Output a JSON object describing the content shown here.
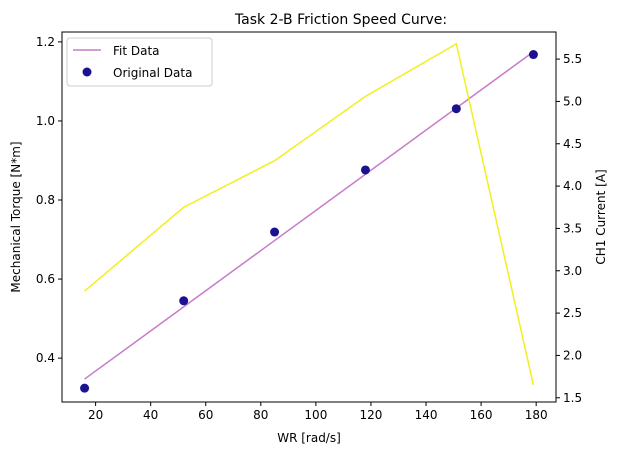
{
  "chart_data": {
    "type": "line",
    "title": "Task 2-B Friction Speed Curve:",
    "xlabel": "WR [rad/s]",
    "ylabel": "Mechanical Torque [N*m]",
    "y2label": "CH1 Current [A]",
    "xlim": [
      7.8,
      187.2
    ],
    "ylim": [
      0.289,
      1.225
    ],
    "y2lim": [
      1.45,
      5.82
    ],
    "x_ticks": [
      20,
      40,
      60,
      80,
      100,
      120,
      140,
      160,
      180
    ],
    "y_ticks": [
      0.4,
      0.6,
      0.8,
      1.0,
      1.2
    ],
    "y_tick_labels": [
      "0.4",
      "0.6",
      "0.8",
      "1.0",
      "1.2"
    ],
    "y2_ticks": [
      1.5,
      2.0,
      2.5,
      3.0,
      3.5,
      4.0,
      4.5,
      5.0,
      5.5
    ],
    "y2_tick_labels": [
      "1.5",
      "2.0",
      "2.5",
      "3.0",
      "3.5",
      "4.0",
      "4.5",
      "5.0",
      "5.5"
    ],
    "grid": false,
    "legend_position": "top-left",
    "series": [
      {
        "name": "Fit Data",
        "kind": "line",
        "axis": "left",
        "color": "#c77cc7",
        "x": [
          16,
          179
        ],
        "y": [
          0.347,
          1.175
        ]
      },
      {
        "name": "Original Data",
        "kind": "scatter",
        "axis": "left",
        "color": "#1a1290",
        "x": [
          16,
          52,
          85,
          118,
          151,
          179
        ],
        "y": [
          0.324,
          0.545,
          0.719,
          0.876,
          1.031,
          1.168
        ]
      },
      {
        "kind": "line",
        "axis": "right",
        "color": "#f0f020",
        "x": [
          16,
          52,
          85,
          118,
          151,
          179
        ],
        "y": [
          2.76,
          3.75,
          4.3,
          5.06,
          5.68,
          1.65
        ]
      }
    ]
  }
}
